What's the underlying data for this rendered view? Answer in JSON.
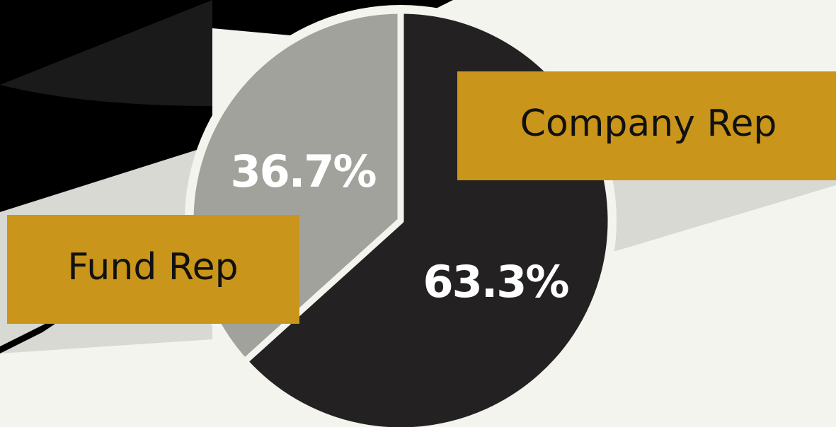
{
  "chart_data": {
    "type": "pie",
    "categories": [
      "Company Rep",
      "Fund Rep"
    ],
    "values": [
      63.3,
      36.7
    ],
    "value_labels": [
      "63.3%",
      "36.7%"
    ],
    "colors": [
      "#242122",
      "#a2a29c"
    ]
  }
}
